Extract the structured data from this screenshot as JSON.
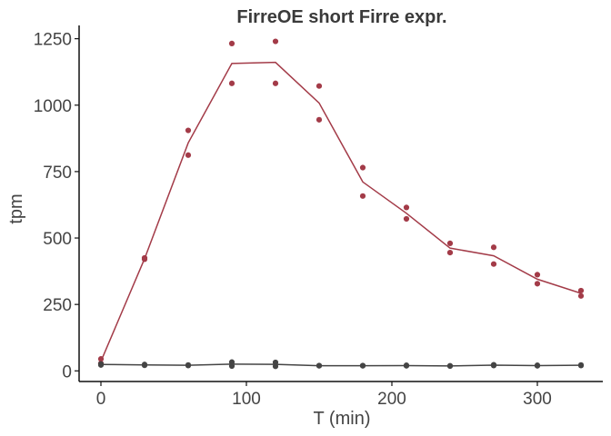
{
  "chart_data": {
    "type": "line",
    "title": "FirreOE short Firre expr.",
    "xlabel": "T (min)",
    "ylabel": "tpm",
    "xlim": [
      -15,
      345
    ],
    "ylim": [
      -40,
      1300
    ],
    "xticks": [
      0,
      100,
      200,
      300
    ],
    "yticks": [
      0,
      250,
      500,
      750,
      1000,
      1250
    ],
    "xtick_labels": [
      "0",
      "100",
      "200",
      "300"
    ],
    "ytick_labels": [
      "0",
      "250",
      "500",
      "750",
      "1000",
      "1250"
    ],
    "grid": false,
    "legend": "none",
    "series": [
      {
        "color": "#a33b48",
        "points": [
          [
            0,
            45
          ],
          [
            0,
            28
          ],
          [
            30,
            425
          ],
          [
            30,
            420
          ],
          [
            60,
            905
          ],
          [
            60,
            812
          ],
          [
            90,
            1232
          ],
          [
            90,
            1082
          ],
          [
            120,
            1240
          ],
          [
            120,
            1082
          ],
          [
            150,
            1072
          ],
          [
            150,
            945
          ],
          [
            180,
            765
          ],
          [
            180,
            658
          ],
          [
            210,
            615
          ],
          [
            210,
            572
          ],
          [
            240,
            480
          ],
          [
            240,
            445
          ],
          [
            270,
            465
          ],
          [
            270,
            402
          ],
          [
            300,
            362
          ],
          [
            300,
            328
          ],
          [
            330,
            302
          ],
          [
            330,
            282
          ]
        ],
        "line": [
          [
            0,
            36
          ],
          [
            30,
            422
          ],
          [
            60,
            858
          ],
          [
            90,
            1157
          ],
          [
            120,
            1161
          ],
          [
            150,
            1008
          ],
          [
            180,
            711
          ],
          [
            210,
            593
          ],
          [
            240,
            462
          ],
          [
            270,
            433
          ],
          [
            300,
            345
          ],
          [
            330,
            292
          ]
        ]
      },
      {
        "color": "#444444",
        "points": [
          [
            0,
            26
          ],
          [
            0,
            22
          ],
          [
            30,
            24
          ],
          [
            30,
            21
          ],
          [
            60,
            22
          ],
          [
            60,
            20
          ],
          [
            90,
            33
          ],
          [
            90,
            18
          ],
          [
            120,
            32
          ],
          [
            120,
            17
          ],
          [
            150,
            20
          ],
          [
            150,
            19
          ],
          [
            180,
            20
          ],
          [
            180,
            19
          ],
          [
            210,
            21
          ],
          [
            210,
            19
          ],
          [
            240,
            19
          ],
          [
            240,
            18
          ],
          [
            270,
            23
          ],
          [
            270,
            20
          ],
          [
            300,
            21
          ],
          [
            300,
            19
          ],
          [
            330,
            22
          ],
          [
            330,
            20
          ]
        ],
        "line": [
          [
            0,
            24
          ],
          [
            30,
            22.5
          ],
          [
            60,
            21
          ],
          [
            90,
            25.5
          ],
          [
            120,
            24.5
          ],
          [
            150,
            19.5
          ],
          [
            180,
            19.5
          ],
          [
            210,
            20
          ],
          [
            240,
            18.5
          ],
          [
            270,
            21.5
          ],
          [
            300,
            20
          ],
          [
            330,
            21
          ]
        ]
      }
    ]
  }
}
